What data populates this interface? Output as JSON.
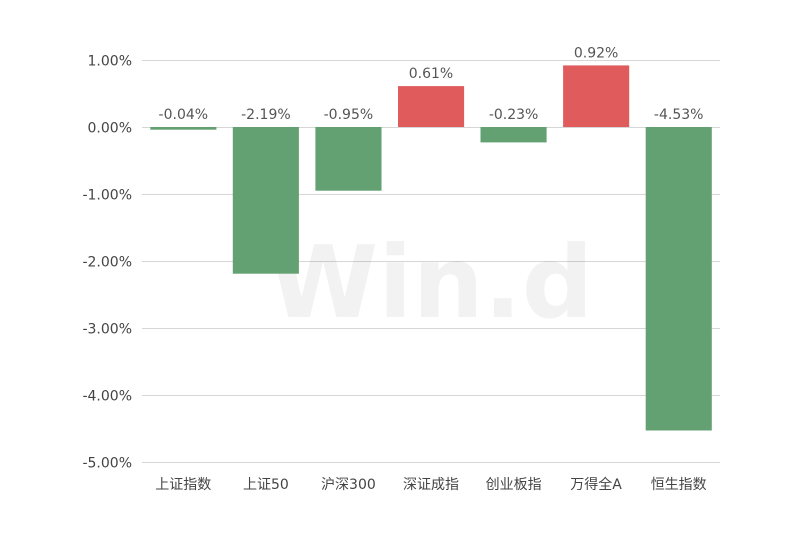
{
  "watermark": "Win.d",
  "chart_data": {
    "type": "bar",
    "categories": [
      "上证指数",
      "上证50",
      "沪深300",
      "深证成指",
      "创业板指",
      "万得全A",
      "恒生指数"
    ],
    "values": [
      -0.04,
      -2.19,
      -0.95,
      0.61,
      -0.23,
      0.92,
      -4.53
    ],
    "data_labels": [
      "-0.04%",
      "-2.19%",
      "-0.95%",
      "0.61%",
      "-0.23%",
      "0.92%",
      "-4.53%"
    ],
    "yticks": [
      "1.00%",
      "0.00%",
      "-1.00%",
      "-2.00%",
      "-3.00%",
      "-4.00%",
      "-5.00%"
    ],
    "ylim": [
      -5,
      1
    ],
    "title": "",
    "xlabel": "",
    "ylabel": "",
    "grid": true,
    "colors": {
      "positive": "#e05c5c",
      "negative": "#63a172",
      "grid": "#d6d6d6"
    }
  }
}
